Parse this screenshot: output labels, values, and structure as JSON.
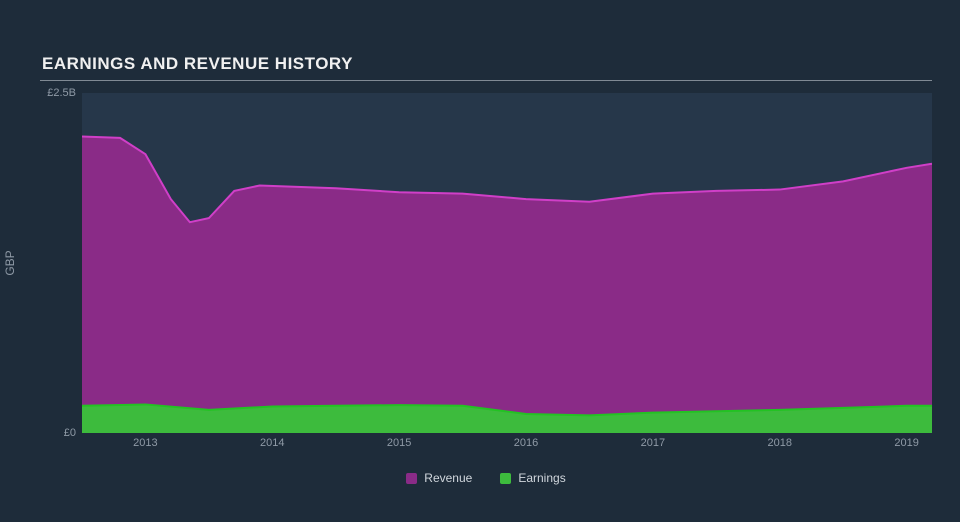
{
  "chart": {
    "type": "area",
    "title": "EARNINGS AND REVENUE HISTORY",
    "background_color": "#1e2c3a",
    "plot_bg_color": "#26374a",
    "axis_text_color": "#8f9aa6",
    "title_fontsize": 17,
    "tick_fontsize": 11,
    "yaxis": {
      "label": "GBP",
      "min": 0,
      "max": 2.5,
      "ticks": [
        {
          "value": 2.5,
          "label": "£2.5B"
        },
        {
          "value": 0,
          "label": "£0"
        }
      ]
    },
    "xaxis": {
      "min": 2012.5,
      "max": 2019.2,
      "ticks": [
        2013,
        2014,
        2015,
        2016,
        2017,
        2018,
        2019
      ]
    },
    "series": [
      {
        "name": "Revenue",
        "stroke": "#d03fc8",
        "fill": "#8a2b87",
        "fill_opacity": 1,
        "stroke_width": 2,
        "data": [
          [
            2012.5,
            2.18
          ],
          [
            2012.8,
            2.17
          ],
          [
            2013.0,
            2.05
          ],
          [
            2013.2,
            1.72
          ],
          [
            2013.35,
            1.55
          ],
          [
            2013.5,
            1.58
          ],
          [
            2013.7,
            1.78
          ],
          [
            2013.9,
            1.82
          ],
          [
            2014.5,
            1.8
          ],
          [
            2015.0,
            1.77
          ],
          [
            2015.5,
            1.76
          ],
          [
            2016.0,
            1.72
          ],
          [
            2016.5,
            1.7
          ],
          [
            2017.0,
            1.76
          ],
          [
            2017.5,
            1.78
          ],
          [
            2018.0,
            1.79
          ],
          [
            2018.5,
            1.85
          ],
          [
            2019.0,
            1.95
          ],
          [
            2019.2,
            1.98
          ]
        ]
      },
      {
        "name": "Earnings",
        "stroke": "#23c223",
        "fill": "#3dbb3d",
        "fill_opacity": 1,
        "stroke_width": 2,
        "data": [
          [
            2012.5,
            0.2
          ],
          [
            2013.0,
            0.21
          ],
          [
            2013.5,
            0.17
          ],
          [
            2014.0,
            0.195
          ],
          [
            2014.5,
            0.2
          ],
          [
            2015.0,
            0.205
          ],
          [
            2015.5,
            0.2
          ],
          [
            2016.0,
            0.14
          ],
          [
            2016.5,
            0.13
          ],
          [
            2017.0,
            0.15
          ],
          [
            2017.5,
            0.16
          ],
          [
            2018.0,
            0.17
          ],
          [
            2018.5,
            0.185
          ],
          [
            2019.0,
            0.2
          ],
          [
            2019.2,
            0.2
          ]
        ]
      }
    ],
    "legend": {
      "items": [
        {
          "label": "Revenue",
          "color": "#8a2b87"
        },
        {
          "label": "Earnings",
          "color": "#3dbb3d"
        }
      ]
    }
  }
}
